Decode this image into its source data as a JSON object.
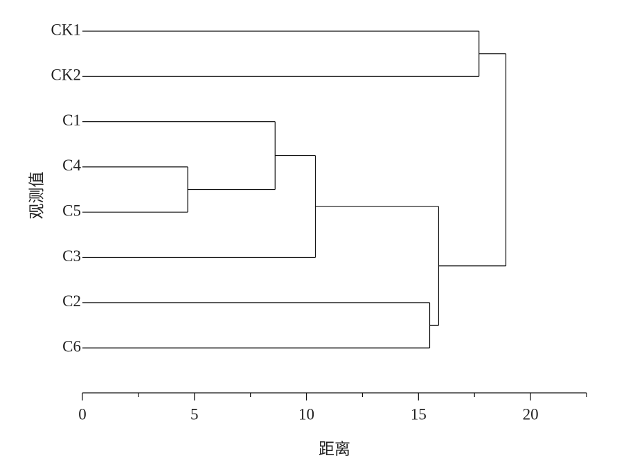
{
  "chart_data": {
    "type": "dendrogram",
    "xlabel": "距离",
    "ylabel": "观测值",
    "leaves": [
      "CK1",
      "CK2",
      "C1",
      "C4",
      "C5",
      "C3",
      "C2",
      "C6"
    ],
    "merges": [
      {
        "children": [
          3,
          4
        ],
        "height": 4.7
      },
      {
        "children": [
          2,
          8
        ],
        "height": 8.6
      },
      {
        "children": [
          9,
          5
        ],
        "height": 10.4
      },
      {
        "children": [
          6,
          7
        ],
        "height": 15.5
      },
      {
        "children": [
          10,
          11
        ],
        "height": 15.9
      },
      {
        "children": [
          0,
          1
        ],
        "height": 17.7
      },
      {
        "children": [
          12,
          13
        ],
        "height": 18.9
      }
    ],
    "xlim": [
      0,
      22.5
    ],
    "xticks": [
      0,
      5,
      10,
      15,
      20
    ],
    "xminorticks": [
      2.5,
      7.5,
      12.5,
      17.5,
      22.5
    ],
    "color": "#111111"
  }
}
